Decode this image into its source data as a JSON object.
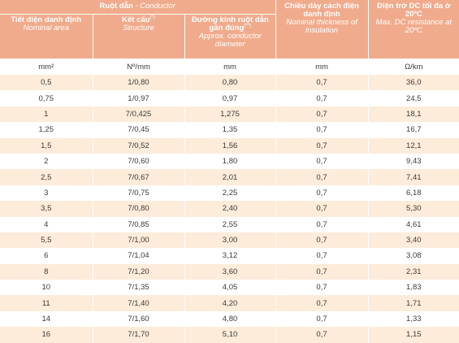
{
  "header": {
    "conductor_group": {
      "vi": "Ruột dẫn",
      "sep": " - ",
      "en": "Conductor"
    },
    "columns": [
      {
        "vi": "Tiết diện danh định",
        "sup": "",
        "en": "Nominal area"
      },
      {
        "vi": "Kết cấu",
        "sup": "(*)",
        "en": "Structure"
      },
      {
        "vi": "Đường kính ruột dẫn gần đúng",
        "sup": "(**)",
        "en": "Approx. conductor diameter"
      },
      {
        "vi": "Chiều dày cách điện danh định",
        "sup": "",
        "en": "Nominal thickness of insulation"
      },
      {
        "vi": "Điện trở DC tối đa ở 20ºC",
        "sup": "",
        "en": "Max. DC resistance at 20ºC"
      }
    ]
  },
  "units": [
    "mm²",
    "Nº/mm",
    "mm",
    "mm",
    "Ω/km"
  ],
  "rows": [
    [
      "0,5",
      "1/0,80",
      "0,80",
      "0,7",
      "36,0"
    ],
    [
      "0,75",
      "1/0,97",
      "0,97",
      "0,7",
      "24,5"
    ],
    [
      "1",
      "7/0,425",
      "1,275",
      "0,7",
      "18,1"
    ],
    [
      "1,25",
      "7/0,45",
      "1,35",
      "0,7",
      "16,7"
    ],
    [
      "1,5",
      "7/0,52",
      "1,56",
      "0,7",
      "12,1"
    ],
    [
      "2",
      "7/0,60",
      "1,80",
      "0,7",
      "9,43"
    ],
    [
      "2,5",
      "7/0,67",
      "2,01",
      "0,7",
      "7,41"
    ],
    [
      "3",
      "7/0,75",
      "2,25",
      "0,7",
      "6,18"
    ],
    [
      "3,5",
      "7/0,80",
      "2,40",
      "0,7",
      "5,30"
    ],
    [
      "4",
      "7/0,85",
      "2,55",
      "0,7",
      "4,61"
    ],
    [
      "5,5",
      "7/1,00",
      "3,00",
      "0,7",
      "3,40"
    ],
    [
      "6",
      "7/1,04",
      "3,12",
      "0,7",
      "3,08"
    ],
    [
      "8",
      "7/1,20",
      "3,60",
      "0,7",
      "2,31"
    ],
    [
      "10",
      "7/1,35",
      "4,05",
      "0,7",
      "1,83"
    ],
    [
      "11",
      "7/1,40",
      "4,20",
      "0,7",
      "1,71"
    ],
    [
      "14",
      "7/1,60",
      "4,80",
      "0,7",
      "1,33"
    ],
    [
      "16",
      "7/1,70",
      "5,10",
      "0,7",
      "1,15"
    ]
  ],
  "colors": {
    "header_bg": "#f0ab8c",
    "stripe_bg": "#fdecd9",
    "text": "#3a3a3a"
  }
}
